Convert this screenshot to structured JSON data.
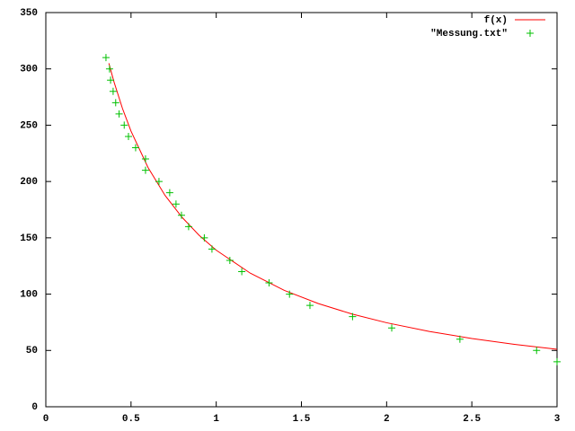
{
  "chart_data": {
    "type": "scatter",
    "xlim": [
      0,
      3
    ],
    "ylim": [
      0,
      350
    ],
    "xticks": [
      0,
      0.5,
      1,
      1.5,
      2,
      2.5,
      3
    ],
    "yticks": [
      0,
      50,
      100,
      150,
      200,
      250,
      300,
      350
    ],
    "legend": "top-right",
    "series": [
      {
        "name": "f(x)",
        "color": "#ff0000",
        "style": "line",
        "x": [
          0.37,
          0.4,
          0.45,
          0.5,
          0.6,
          0.7,
          0.8,
          0.9,
          1.0,
          1.2,
          1.4,
          1.6,
          1.8,
          2.0,
          2.25,
          2.5,
          2.75,
          3.0
        ],
        "values": [
          305,
          288.5,
          264.8,
          244.7,
          212.4,
          187.6,
          168.1,
          152.2,
          139.0,
          118.6,
          103.3,
          91.6,
          82.2,
          74.6,
          66.9,
          60.6,
          55.4,
          51.0
        ]
      },
      {
        "name": "\"Messung.txt\"",
        "color": "#00c000",
        "style": "points",
        "x": [
          0.353,
          0.374,
          0.38,
          0.395,
          0.41,
          0.43,
          0.46,
          0.485,
          0.527,
          0.585,
          0.585,
          0.664,
          0.727,
          0.764,
          0.796,
          0.838,
          0.93,
          0.975,
          1.08,
          1.15,
          1.31,
          1.43,
          1.55,
          1.8,
          2.03,
          2.43,
          2.88,
          3.0
        ],
        "values": [
          310,
          300,
          290,
          280,
          270,
          260,
          250,
          240,
          230,
          220,
          210,
          200,
          190,
          180,
          170,
          160,
          150,
          140,
          130,
          120,
          110,
          100,
          90,
          80,
          70,
          60,
          50,
          40
        ]
      }
    ]
  }
}
